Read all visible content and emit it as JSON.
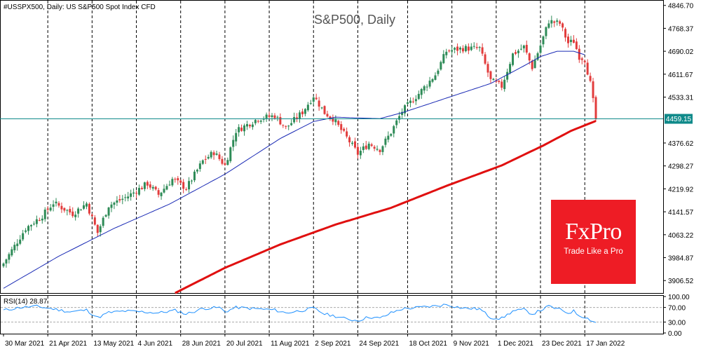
{
  "chart_data": {
    "type": "line",
    "symbol_label": "#USSPX500, Daily:  US S&P500 Spot Index CFD",
    "title": "S&P500, Daily",
    "current_price_label": "4459.15",
    "current_price": 4459.15,
    "ylim": [
      3864,
      4858
    ],
    "y_ticks": [
      {
        "label": "4846.70",
        "value": 4846.7
      },
      {
        "label": "4768.37",
        "value": 4768.37
      },
      {
        "label": "4690.02",
        "value": 4690.02
      },
      {
        "label": "4611.67",
        "value": 4611.67
      },
      {
        "label": "4533.31",
        "value": 4533.31
      },
      {
        "label": "4376.62",
        "value": 4376.62
      },
      {
        "label": "4298.27",
        "value": 4298.27
      },
      {
        "label": "4219.92",
        "value": 4219.92
      },
      {
        "label": "4141.57",
        "value": 4141.57
      },
      {
        "label": "4063.22",
        "value": 4063.22
      },
      {
        "label": "3984.87",
        "value": 3984.87
      },
      {
        "label": "3906.52",
        "value": 3906.52
      }
    ],
    "x_ticks": [
      "30 Mar 2021",
      "21 Apr 2021",
      "13 May 2021",
      "4 Jun 2021",
      "28 Jun 2021",
      "20 Jul 2021",
      "11 Aug 2021",
      "2 Sep 2021",
      "24 Sep 2021",
      "18 Oct 2021",
      "9 Nov 2021",
      "1 Dec 2021",
      "23 Dec 2021",
      "17 Jan 2022"
    ],
    "x_tick_bar_index": [
      0,
      16,
      32,
      48,
      64,
      80,
      96,
      112,
      128,
      146,
      162,
      178,
      194,
      210
    ],
    "num_bars": 215,
    "close_anchors": [
      [
        0,
        3965
      ],
      [
        8,
        4085
      ],
      [
        14,
        4128
      ],
      [
        18,
        4172
      ],
      [
        25,
        4135
      ],
      [
        30,
        4170
      ],
      [
        34,
        4070
      ],
      [
        38,
        4163
      ],
      [
        45,
        4195
      ],
      [
        52,
        4238
      ],
      [
        56,
        4200
      ],
      [
        61,
        4253
      ],
      [
        66,
        4222
      ],
      [
        72,
        4315
      ],
      [
        76,
        4345
      ],
      [
        80,
        4300
      ],
      [
        84,
        4418
      ],
      [
        92,
        4460
      ],
      [
        98,
        4470
      ],
      [
        102,
        4428
      ],
      [
        108,
        4482
      ],
      [
        112,
        4538
      ],
      [
        116,
        4480
      ],
      [
        119,
        4460
      ],
      [
        124,
        4395
      ],
      [
        128,
        4340
      ],
      [
        132,
        4375
      ],
      [
        136,
        4355
      ],
      [
        140,
        4413
      ],
      [
        144,
        4485
      ],
      [
        150,
        4545
      ],
      [
        156,
        4610
      ],
      [
        160,
        4690
      ],
      [
        166,
        4700
      ],
      [
        172,
        4700
      ],
      [
        176,
        4590
      ],
      [
        180,
        4570
      ],
      [
        184,
        4680
      ],
      [
        188,
        4705
      ],
      [
        191,
        4635
      ],
      [
        194,
        4710
      ],
      [
        197,
        4793
      ],
      [
        201,
        4785
      ],
      [
        204,
        4718
      ],
      [
        206,
        4725
      ],
      [
        208,
        4672
      ],
      [
        210,
        4662
      ],
      [
        212,
        4580
      ],
      [
        214,
        4459
      ]
    ],
    "series": [
      {
        "name": "",
        "kind": "ma_blue",
        "color": "#1b2bb5",
        "anchors": [
          [
            0,
            3880
          ],
          [
            20,
            3990
          ],
          [
            40,
            4085
          ],
          [
            60,
            4168
          ],
          [
            80,
            4270
          ],
          [
            100,
            4392
          ],
          [
            112,
            4450
          ],
          [
            120,
            4465
          ],
          [
            128,
            4462
          ],
          [
            136,
            4460
          ],
          [
            144,
            4480
          ],
          [
            160,
            4530
          ],
          [
            176,
            4580
          ],
          [
            188,
            4640
          ],
          [
            194,
            4672
          ],
          [
            200,
            4690
          ],
          [
            206,
            4690
          ],
          [
            210,
            4678
          ]
        ]
      },
      {
        "name": "",
        "kind": "ma_red",
        "color": "#e01010",
        "anchors": [
          [
            62,
            3864
          ],
          [
            80,
            3950
          ],
          [
            100,
            4030
          ],
          [
            120,
            4098
          ],
          [
            140,
            4155
          ],
          [
            160,
            4230
          ],
          [
            180,
            4300
          ],
          [
            195,
            4368
          ],
          [
            205,
            4418
          ],
          [
            214,
            4452
          ]
        ]
      }
    ],
    "candle_up_color": "#2e8b57",
    "candle_down_color": "#e23c3c",
    "price_line_color": "#0f8a8a",
    "rsi": {
      "label": "RSI(14) 28.87",
      "value": 28.87,
      "ylim": [
        0,
        100
      ],
      "ticks": [
        {
          "label": "100.00",
          "value": 100
        },
        {
          "label": "70.00",
          "value": 70
        },
        {
          "label": "30.00",
          "value": 30
        },
        {
          "label": "0.00",
          "value": 0
        }
      ],
      "color": "#1e90ff",
      "anchors": [
        [
          0,
          62
        ],
        [
          6,
          70
        ],
        [
          12,
          73
        ],
        [
          18,
          66
        ],
        [
          24,
          58
        ],
        [
          30,
          63
        ],
        [
          34,
          42
        ],
        [
          38,
          56
        ],
        [
          44,
          60
        ],
        [
          50,
          58
        ],
        [
          56,
          55
        ],
        [
          62,
          62
        ],
        [
          66,
          52
        ],
        [
          72,
          67
        ],
        [
          78,
          70
        ],
        [
          80,
          58
        ],
        [
          84,
          70
        ],
        [
          92,
          66
        ],
        [
          98,
          63
        ],
        [
          102,
          55
        ],
        [
          108,
          62
        ],
        [
          112,
          68
        ],
        [
          116,
          52
        ],
        [
          120,
          46
        ],
        [
          124,
          38
        ],
        [
          128,
          34
        ],
        [
          132,
          44
        ],
        [
          136,
          40
        ],
        [
          140,
          55
        ],
        [
          144,
          66
        ],
        [
          150,
          70
        ],
        [
          156,
          74
        ],
        [
          160,
          78
        ],
        [
          166,
          68
        ],
        [
          172,
          66
        ],
        [
          176,
          42
        ],
        [
          180,
          40
        ],
        [
          184,
          60
        ],
        [
          188,
          64
        ],
        [
          191,
          52
        ],
        [
          194,
          62
        ],
        [
          197,
          73
        ],
        [
          201,
          64
        ],
        [
          204,
          55
        ],
        [
          206,
          60
        ],
        [
          208,
          48
        ],
        [
          210,
          44
        ],
        [
          212,
          36
        ],
        [
          214,
          28.87
        ]
      ]
    }
  },
  "watermark": {
    "brand": "FxPro",
    "tagline": "Trade Like a Pro",
    "bg_color": "#ee1c25"
  }
}
